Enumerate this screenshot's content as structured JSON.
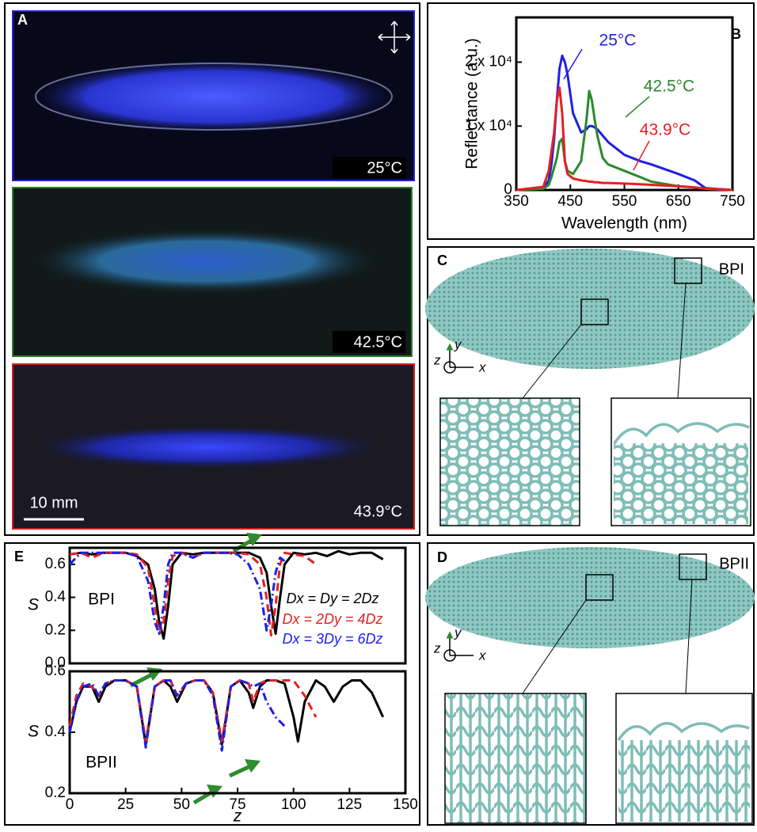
{
  "panels": {
    "A": {
      "label": "A",
      "images": [
        "25°C",
        "42.5°C",
        "43.9°C"
      ],
      "scale_bar": "10 mm"
    },
    "B": {
      "label": "B"
    },
    "C": {
      "label": "C",
      "phase": "BPI",
      "axes": [
        "x",
        "y",
        "z"
      ]
    },
    "D": {
      "label": "D",
      "phase": "BPII",
      "axes": [
        "x",
        "y",
        "z"
      ]
    },
    "E": {
      "label": "E"
    }
  },
  "chart_data": [
    {
      "type": "line",
      "xlabel": "Wavelength (nm)",
      "ylabel": "Reflectance (a.u.)",
      "xlim": [
        350,
        750
      ],
      "ylim": [
        0,
        27000
      ],
      "xticks": [
        350,
        450,
        550,
        650,
        750
      ],
      "yticks": [
        0,
        {
          "value": 10000,
          "label": "1 x 10⁴"
        },
        {
          "value": 20000,
          "label": "2 x 10⁴"
        }
      ],
      "x": [
        350,
        400,
        410,
        415,
        420,
        425,
        430,
        435,
        440,
        445,
        455,
        470,
        480,
        485,
        490,
        495,
        500,
        510,
        520,
        550,
        580,
        600,
        650,
        680,
        700,
        750
      ],
      "series": [
        {
          "name": "25°C",
          "color": "#1f1fe6",
          "values": [
            0,
            300,
            1500,
            4000,
            8000,
            14000,
            19000,
            21000,
            20000,
            18000,
            12000,
            9000,
            9500,
            10000,
            10000,
            9800,
            9500,
            8500,
            7500,
            5500,
            4500,
            4000,
            2500,
            1500,
            300,
            0
          ]
        },
        {
          "name": "42.5°C",
          "color": "#2a8a2a",
          "values": [
            0,
            200,
            800,
            2000,
            3500,
            5000,
            7500,
            8000,
            4500,
            3000,
            2500,
            4500,
            11000,
            15500,
            14000,
            11000,
            8500,
            5000,
            4000,
            3000,
            2000,
            1300,
            600,
            400,
            200,
            0
          ]
        },
        {
          "name": "43.9°C",
          "color": "#e62020",
          "values": [
            0,
            500,
            3000,
            6000,
            9000,
            14000,
            16000,
            12000,
            4500,
            2500,
            1800,
            1500,
            1400,
            1300,
            1300,
            1200,
            1200,
            1100,
            1100,
            1000,
            900,
            800,
            600,
            400,
            200,
            0
          ]
        }
      ]
    },
    {
      "type": "line",
      "annotation": "BPI",
      "ylabel": "S",
      "xlim": [
        0,
        150
      ],
      "ylim": [
        0,
        0.7
      ],
      "yticks": [
        {
          "value": 0,
          "label": "0.0"
        },
        0.2,
        0.4,
        0.6
      ],
      "x": [
        0,
        5,
        10,
        15,
        20,
        25,
        30,
        35,
        38,
        40,
        42,
        44,
        46,
        50,
        55,
        60,
        65,
        70,
        75,
        80,
        85,
        88,
        90,
        92,
        94,
        96,
        100,
        105,
        110,
        115,
        120,
        125,
        130,
        135,
        140
      ],
      "series": [
        {
          "name": "Dx = Dy = 2Dz",
          "color": "#000000",
          "dash": "solid",
          "values": [
            0.66,
            0.67,
            0.66,
            0.67,
            0.67,
            0.67,
            0.65,
            0.6,
            0.45,
            0.25,
            0.15,
            0.35,
            0.6,
            0.67,
            0.66,
            0.67,
            0.67,
            0.67,
            0.67,
            0.67,
            0.64,
            0.55,
            0.35,
            0.18,
            0.4,
            0.6,
            0.67,
            0.66,
            0.67,
            0.65,
            0.68,
            0.66,
            0.67,
            0.67,
            0.63
          ]
        },
        {
          "name": "Dx = 2Dy = 4Dz",
          "color": "#e62020",
          "dash": "dashed",
          "values": [
            0.66,
            0.67,
            0.64,
            0.67,
            0.67,
            0.67,
            0.66,
            0.58,
            0.35,
            0.18,
            0.25,
            0.5,
            0.65,
            0.67,
            0.64,
            0.67,
            0.67,
            0.67,
            0.67,
            0.66,
            0.6,
            0.4,
            0.17,
            0.35,
            0.6,
            0.67,
            0.66,
            0.65,
            0.6,
            null,
            null,
            null,
            null,
            null,
            null
          ]
        },
        {
          "name": "Dx = 3Dy = 6Dz",
          "color": "#1f1fe6",
          "dash": "dashdot",
          "values": [
            0.6,
            0.67,
            0.67,
            0.67,
            0.67,
            0.67,
            0.65,
            0.5,
            0.25,
            0.18,
            0.35,
            0.6,
            0.67,
            0.67,
            0.64,
            0.67,
            0.67,
            0.67,
            0.66,
            0.6,
            0.45,
            0.2,
            0.35,
            0.55,
            0.64,
            0.62,
            null,
            null,
            null,
            null,
            null,
            null,
            null,
            null,
            null
          ]
        }
      ]
    },
    {
      "type": "line",
      "annotation": "BPII",
      "ylabel": "S",
      "xlabel": "z",
      "xlim": [
        0,
        150
      ],
      "ylim": [
        0.2,
        0.6
      ],
      "xticks": [
        0,
        25,
        50,
        75,
        100,
        125,
        150
      ],
      "yticks": [
        0.2,
        0.4,
        0.6
      ],
      "x": [
        0,
        3,
        6,
        10,
        13,
        16,
        20,
        25,
        30,
        34,
        38,
        42,
        45,
        48,
        52,
        56,
        60,
        64,
        68,
        72,
        76,
        80,
        82,
        85,
        88,
        92,
        96,
        100,
        102,
        105,
        110,
        114,
        118,
        122,
        126,
        130,
        135,
        140
      ],
      "series": [
        {
          "color": "#000000",
          "dash": "solid",
          "values": [
            0.4,
            0.5,
            0.55,
            0.55,
            0.5,
            0.55,
            0.57,
            0.57,
            0.55,
            0.36,
            0.55,
            0.57,
            0.55,
            0.5,
            0.56,
            0.57,
            0.57,
            0.53,
            0.36,
            0.55,
            0.57,
            0.53,
            0.48,
            0.55,
            0.57,
            0.57,
            0.56,
            0.45,
            0.37,
            0.5,
            0.57,
            0.55,
            0.5,
            0.55,
            0.57,
            0.57,
            0.53,
            0.45
          ]
        },
        {
          "color": "#e62020",
          "dash": "dashed",
          "values": [
            0.42,
            0.52,
            0.56,
            0.55,
            0.52,
            0.56,
            0.57,
            0.57,
            0.55,
            0.37,
            0.55,
            0.57,
            0.57,
            0.52,
            0.56,
            0.57,
            0.57,
            0.53,
            0.37,
            0.55,
            0.57,
            0.56,
            0.5,
            0.56,
            0.57,
            0.57,
            0.57,
            0.57,
            0.55,
            0.52,
            0.45,
            null,
            null,
            null,
            null,
            null,
            null,
            null
          ]
        },
        {
          "color": "#1f1fe6",
          "dash": "dashdot",
          "values": [
            0.4,
            0.5,
            0.55,
            0.56,
            0.52,
            0.56,
            0.57,
            0.57,
            0.55,
            0.35,
            0.55,
            0.57,
            0.57,
            0.52,
            0.56,
            0.57,
            0.57,
            0.52,
            0.34,
            0.55,
            0.57,
            0.56,
            0.55,
            0.56,
            0.5,
            0.45,
            0.42,
            null,
            null,
            null,
            null,
            null,
            null,
            null,
            null,
            null,
            null,
            null
          ]
        }
      ]
    }
  ]
}
